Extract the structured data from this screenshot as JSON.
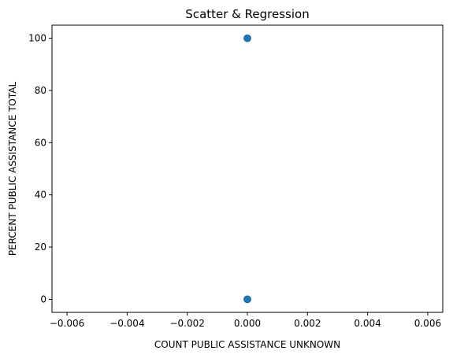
{
  "chart_data": {
    "type": "scatter",
    "title": "Scatter & Regression",
    "xlabel": "COUNT PUBLIC ASSISTANCE UNKNOWN",
    "ylabel": "PERCENT PUBLIC ASSISTANCE TOTAL",
    "xlim": [
      -0.0065,
      0.0065
    ],
    "ylim": [
      -5,
      105
    ],
    "x_ticks": [
      -0.006,
      -0.004,
      -0.002,
      0.0,
      0.002,
      0.004,
      0.006
    ],
    "x_tick_labels": [
      "−0.006",
      "−0.004",
      "−0.002",
      "0.000",
      "0.002",
      "0.004",
      "0.006"
    ],
    "y_ticks": [
      0,
      20,
      40,
      60,
      80,
      100
    ],
    "y_tick_labels": [
      "0",
      "20",
      "40",
      "60",
      "80",
      "100"
    ],
    "grid": false,
    "point_color": "#1f77b4",
    "points": [
      {
        "x": 0,
        "y": 100
      },
      {
        "x": 0,
        "y": 0
      }
    ]
  }
}
